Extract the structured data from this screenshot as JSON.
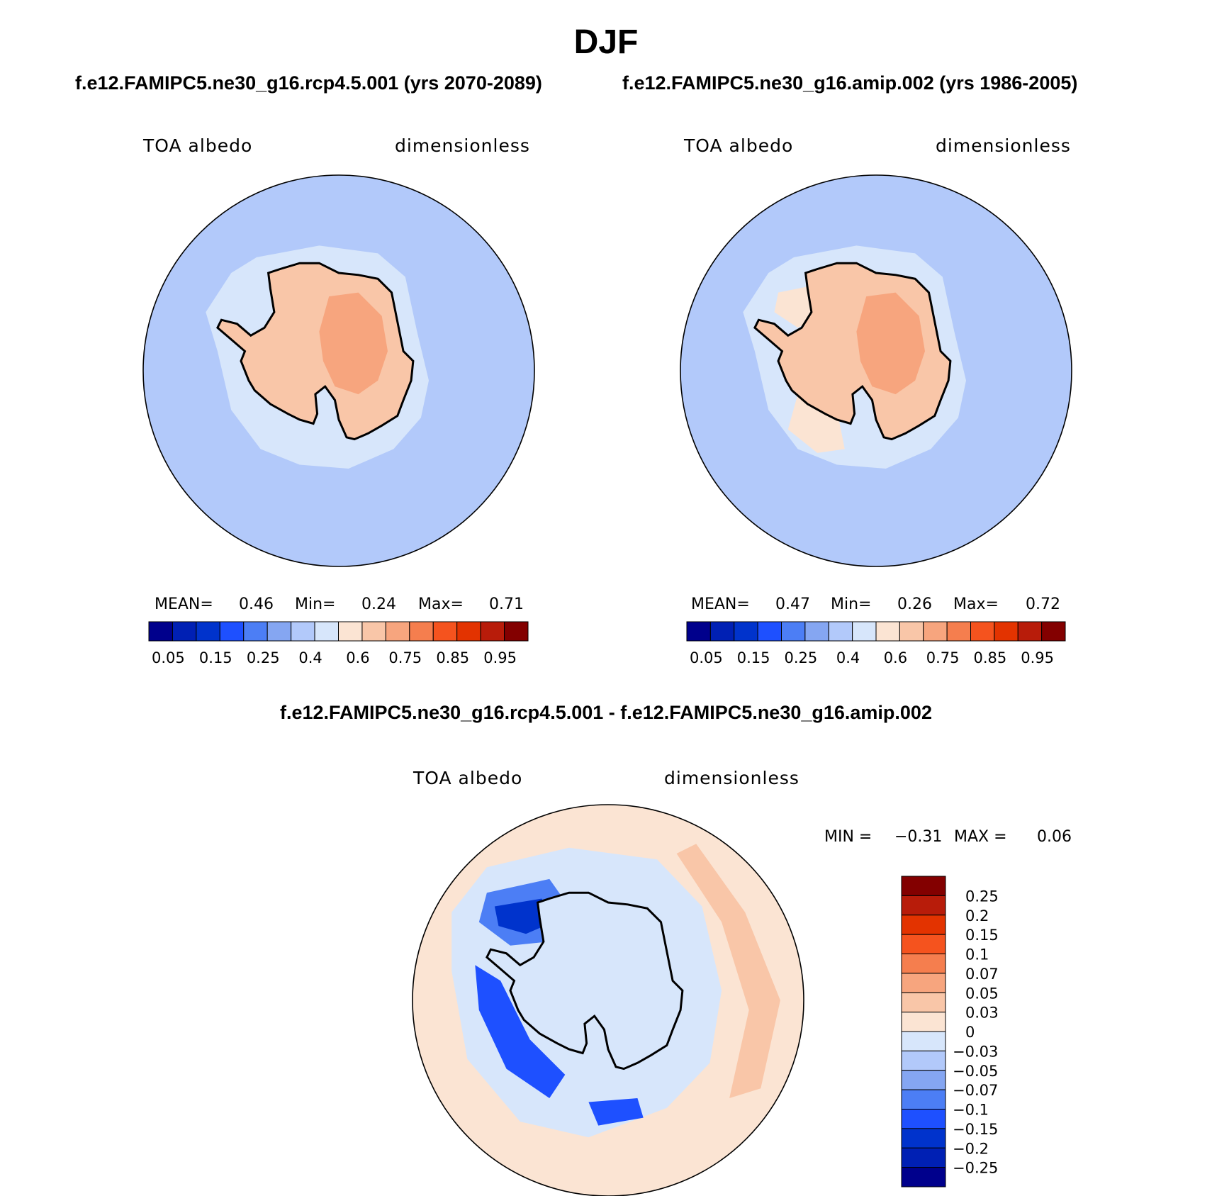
{
  "season_title": "DJF",
  "panel_titles": {
    "left": "f.e12.FAMIPC5.ne30_g16.rcp4.5.001 (yrs 2070-2089)",
    "right": "f.e12.FAMIPC5.ne30_g16.amip.002 (yrs 1986-2005)",
    "diff": "f.e12.FAMIPC5.ne30_g16.rcp4.5.001 - f.e12.FAMIPC5.ne30_g16.amip.002"
  },
  "chart_data": [
    {
      "type": "heatmap",
      "projection": "south polar stereographic",
      "variable_label": "TOA albedo",
      "units_label": "dimensionless",
      "stats": {
        "mean_label": "MEAN=",
        "mean": "0.46",
        "min_label": "Min=",
        "min": "0.24",
        "max_label": "Max=",
        "max": "0.71"
      },
      "colorbar": {
        "orientation": "horizontal",
        "tick_labels": [
          "0.05",
          "0.15",
          "0.25",
          "0.4",
          "0.6",
          "0.75",
          "0.85",
          "0.95"
        ],
        "colors": [
          "#00008c",
          "#0020b4",
          "#0033cc",
          "#1e50ff",
          "#4c7ef5",
          "#85a6f2",
          "#b2c9fa",
          "#d7e6fb",
          "#fbe4d3",
          "#f9c6a8",
          "#f7a57e",
          "#f57e4e",
          "#f5531e",
          "#e33300",
          "#b81c0a",
          "#830000"
        ]
      }
    },
    {
      "type": "heatmap",
      "projection": "south polar stereographic",
      "variable_label": "TOA albedo",
      "units_label": "dimensionless",
      "stats": {
        "mean_label": "MEAN=",
        "mean": "0.47",
        "min_label": "Min=",
        "min": "0.26",
        "max_label": "Max=",
        "max": "0.72"
      },
      "colorbar": {
        "orientation": "horizontal",
        "tick_labels": [
          "0.05",
          "0.15",
          "0.25",
          "0.4",
          "0.6",
          "0.75",
          "0.85",
          "0.95"
        ],
        "colors": [
          "#00008c",
          "#0020b4",
          "#0033cc",
          "#1e50ff",
          "#4c7ef5",
          "#85a6f2",
          "#b2c9fa",
          "#d7e6fb",
          "#fbe4d3",
          "#f9c6a8",
          "#f7a57e",
          "#f57e4e",
          "#f5531e",
          "#e33300",
          "#b81c0a",
          "#830000"
        ]
      }
    },
    {
      "type": "heatmap",
      "projection": "south polar stereographic",
      "variable_label": "TOA albedo",
      "units_label": "dimensionless",
      "stats": {
        "min_label": "MIN =",
        "min": "−0.31",
        "max_label": "MAX =",
        "max": "0.06"
      },
      "colorbar": {
        "orientation": "vertical",
        "tick_labels": [
          "0.25",
          "0.2",
          "0.15",
          "0.1",
          "0.07",
          "0.05",
          "0.03",
          "0",
          "−0.03",
          "−0.05",
          "−0.07",
          "−0.1",
          "−0.15",
          "−0.2",
          "−0.25"
        ],
        "colors": [
          "#830000",
          "#b81c0a",
          "#e33300",
          "#f5531e",
          "#f57e4e",
          "#f7a57e",
          "#f9c6a8",
          "#fbe4d3",
          "#d7e6fb",
          "#b2c9fa",
          "#85a6f2",
          "#4c7ef5",
          "#1e50ff",
          "#0033cc",
          "#0020b4",
          "#00008c"
        ]
      }
    }
  ]
}
